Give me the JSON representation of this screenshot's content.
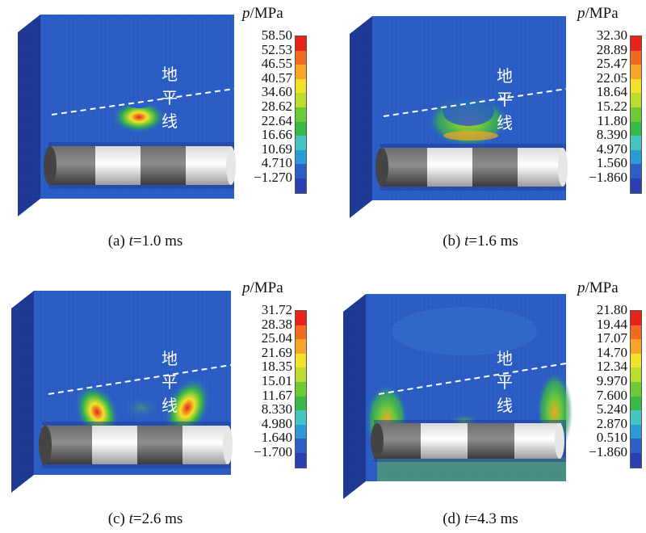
{
  "unit_label_symbol": "p",
  "unit_label_rest": "/MPa",
  "horizon_label": "地平线",
  "legend_colors": [
    "#e8231c",
    "#f26a22",
    "#f7a428",
    "#f2e12b",
    "#b9dc2e",
    "#6ec937",
    "#38b845",
    "#44c5bf",
    "#2c99d8",
    "#2c5fc6",
    "#2a3fb0"
  ],
  "panels": [
    {
      "caption_prefix": "(a) ",
      "caption_var": "t",
      "caption_value": "=1.0 ms",
      "ticks": [
        "58.50",
        "52.53",
        "46.55",
        "40.57",
        "34.60",
        "28.62",
        "22.64",
        "16.66",
        "10.69",
        "4.710",
        "−1.270"
      ]
    },
    {
      "caption_prefix": "(b) ",
      "caption_var": "t",
      "caption_value": "=1.6 ms",
      "ticks": [
        "32.30",
        "28.89",
        "25.47",
        "22.05",
        "18.64",
        "15.22",
        "11.80",
        "8.390",
        "4.970",
        "1.560",
        "−1.860"
      ]
    },
    {
      "caption_prefix": "(c) ",
      "caption_var": "t",
      "caption_value": "=2.6 ms",
      "ticks": [
        "31.72",
        "28.38",
        "25.04",
        "21.69",
        "18.35",
        "15.01",
        "11.67",
        "8.330",
        "4.980",
        "1.640",
        "−1.700"
      ]
    },
    {
      "caption_prefix": "(d) ",
      "caption_var": "t",
      "caption_value": "=4.3 ms",
      "ticks": [
        "21.80",
        "19.44",
        "17.07",
        "14.70",
        "12.34",
        "9.970",
        "7.600",
        "5.240",
        "2.870",
        "0.510",
        "−1.860"
      ]
    }
  ]
}
